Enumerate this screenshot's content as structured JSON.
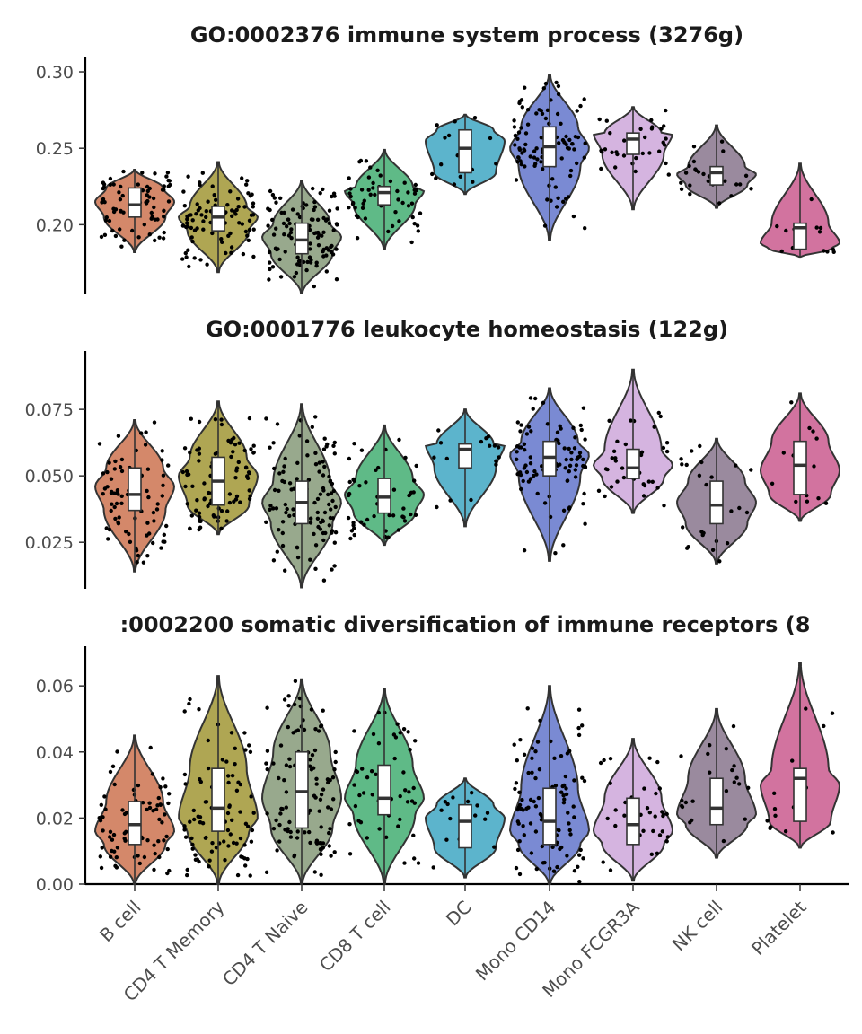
{
  "chart_data": [
    {
      "type": "violin",
      "title": "GO:0002376 immune system process (3276g)",
      "ylim": [
        0.155,
        0.31
      ],
      "yticks": [
        0.2,
        0.25,
        0.3
      ],
      "ytick_labels": [
        "0.20",
        "0.25",
        "0.30"
      ],
      "categories": [
        "B cell",
        "CD4 T Memory",
        "CD4 T Naive",
        "CD8 T cell",
        "DC",
        "Mono CD14",
        "Mono FCGR3A",
        "NK cell",
        "Platelet"
      ],
      "colors": [
        "#D4886A",
        "#AFA653",
        "#98A98D",
        "#5FBA87",
        "#5CB4CC",
        "#7A8AD3",
        "#D5B4E0",
        "#9A8A9E",
        "#D2739F"
      ],
      "stats": [
        {
          "min": 0.182,
          "q1": 0.205,
          "median": 0.213,
          "q3": 0.224,
          "max": 0.236,
          "mode": 0.215,
          "n": 80
        },
        {
          "min": 0.169,
          "q1": 0.196,
          "median": 0.205,
          "q3": 0.212,
          "max": 0.241,
          "mode": 0.205,
          "n": 90
        },
        {
          "min": 0.155,
          "q1": 0.181,
          "median": 0.19,
          "q3": 0.201,
          "max": 0.229,
          "mode": 0.192,
          "n": 110
        },
        {
          "min": 0.184,
          "q1": 0.213,
          "median": 0.221,
          "q3": 0.225,
          "max": 0.249,
          "mode": 0.222,
          "n": 55
        },
        {
          "min": 0.22,
          "q1": 0.234,
          "median": 0.25,
          "q3": 0.262,
          "max": 0.272,
          "mode": 0.255,
          "n": 16
        },
        {
          "min": 0.19,
          "q1": 0.238,
          "median": 0.251,
          "q3": 0.264,
          "max": 0.298,
          "mode": 0.25,
          "n": 100
        },
        {
          "min": 0.21,
          "q1": 0.246,
          "median": 0.256,
          "q3": 0.26,
          "max": 0.277,
          "mode": 0.26,
          "n": 36
        },
        {
          "min": 0.211,
          "q1": 0.226,
          "median": 0.234,
          "q3": 0.238,
          "max": 0.265,
          "mode": 0.233,
          "n": 25
        },
        {
          "min": 0.179,
          "q1": 0.184,
          "median": 0.198,
          "q3": 0.201,
          "max": 0.24,
          "mode": 0.188,
          "n": 14
        }
      ]
    },
    {
      "type": "violin",
      "title": "GO:0001776 leukocyte homeostasis (122g)",
      "ylim": [
        0.0075,
        0.097
      ],
      "yticks": [
        0.025,
        0.05,
        0.075
      ],
      "ytick_labels": [
        "0.025",
        "0.050",
        "0.075"
      ],
      "categories": [
        "B cell",
        "CD4 T Memory",
        "CD4 T Naive",
        "CD8 T cell",
        "DC",
        "Mono CD14",
        "Mono FCGR3A",
        "NK cell",
        "Platelet"
      ],
      "colors": [
        "#D4886A",
        "#AFA653",
        "#98A98D",
        "#5FBA87",
        "#5CB4CC",
        "#7A8AD3",
        "#D5B4E0",
        "#9A8A9E",
        "#D2739F"
      ],
      "stats": [
        {
          "min": 0.014,
          "q1": 0.037,
          "median": 0.043,
          "q3": 0.053,
          "max": 0.071,
          "mode": 0.046,
          "n": 80
        },
        {
          "min": 0.028,
          "q1": 0.039,
          "median": 0.048,
          "q3": 0.057,
          "max": 0.078,
          "mode": 0.05,
          "n": 90
        },
        {
          "min": 0.008,
          "q1": 0.032,
          "median": 0.04,
          "q3": 0.048,
          "max": 0.077,
          "mode": 0.04,
          "n": 110
        },
        {
          "min": 0.024,
          "q1": 0.036,
          "median": 0.042,
          "q3": 0.049,
          "max": 0.069,
          "mode": 0.043,
          "n": 55
        },
        {
          "min": 0.031,
          "q1": 0.053,
          "median": 0.06,
          "q3": 0.062,
          "max": 0.075,
          "mode": 0.062,
          "n": 16
        },
        {
          "min": 0.018,
          "q1": 0.05,
          "median": 0.057,
          "q3": 0.063,
          "max": 0.083,
          "mode": 0.058,
          "n": 100
        },
        {
          "min": 0.036,
          "q1": 0.049,
          "median": 0.053,
          "q3": 0.06,
          "max": 0.09,
          "mode": 0.054,
          "n": 36
        },
        {
          "min": 0.017,
          "q1": 0.032,
          "median": 0.039,
          "q3": 0.048,
          "max": 0.064,
          "mode": 0.04,
          "n": 25
        },
        {
          "min": 0.033,
          "q1": 0.043,
          "median": 0.054,
          "q3": 0.063,
          "max": 0.081,
          "mode": 0.052,
          "n": 14
        }
      ]
    },
    {
      "type": "violin",
      "title": ":0002200 somatic diversification of immune receptors (8",
      "ylim": [
        0,
        0.072
      ],
      "yticks": [
        0,
        0.02,
        0.04,
        0.06
      ],
      "ytick_labels": [
        "0.00",
        "0.02",
        "0.04",
        "0.06"
      ],
      "categories": [
        "B cell",
        "CD4 T Memory",
        "CD4 T Naive",
        "CD8 T cell",
        "DC",
        "Mono CD14",
        "Mono FCGR3A",
        "NK cell",
        "Platelet"
      ],
      "colors": [
        "#D4886A",
        "#AFA653",
        "#98A98D",
        "#5FBA87",
        "#5CB4CC",
        "#7A8AD3",
        "#D5B4E0",
        "#9A8A9E",
        "#D2739F"
      ],
      "stats": [
        {
          "min": 0.0,
          "q1": 0.012,
          "median": 0.018,
          "q3": 0.025,
          "max": 0.045,
          "mode": 0.016,
          "n": 80
        },
        {
          "min": 0.0,
          "q1": 0.016,
          "median": 0.023,
          "q3": 0.035,
          "max": 0.063,
          "mode": 0.02,
          "n": 90
        },
        {
          "min": 0.0,
          "q1": 0.017,
          "median": 0.028,
          "q3": 0.04,
          "max": 0.062,
          "mode": 0.026,
          "n": 110
        },
        {
          "min": 0.0,
          "q1": 0.021,
          "median": 0.026,
          "q3": 0.036,
          "max": 0.059,
          "mode": 0.026,
          "n": 55
        },
        {
          "min": 0.002,
          "q1": 0.011,
          "median": 0.019,
          "q3": 0.024,
          "max": 0.032,
          "mode": 0.02,
          "n": 16
        },
        {
          "min": 0.0,
          "q1": 0.012,
          "median": 0.019,
          "q3": 0.029,
          "max": 0.06,
          "mode": 0.016,
          "n": 100
        },
        {
          "min": 0.001,
          "q1": 0.012,
          "median": 0.018,
          "q3": 0.026,
          "max": 0.044,
          "mode": 0.016,
          "n": 36
        },
        {
          "min": 0.008,
          "q1": 0.018,
          "median": 0.023,
          "q3": 0.032,
          "max": 0.053,
          "mode": 0.021,
          "n": 25
        },
        {
          "min": 0.011,
          "q1": 0.019,
          "median": 0.032,
          "q3": 0.035,
          "max": 0.067,
          "mode": 0.03,
          "n": 14
        }
      ]
    }
  ],
  "x_tick_labels": [
    "B cell",
    "CD4 T Memory",
    "CD4 T Naive",
    "CD8 T cell",
    "DC",
    "Mono CD14",
    "Mono FCGR3A",
    "NK cell",
    "Platelet"
  ]
}
